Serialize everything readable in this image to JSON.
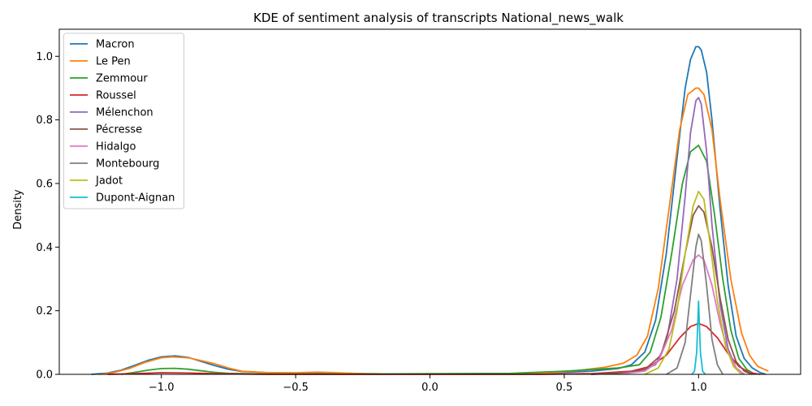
{
  "chart_data": {
    "type": "line",
    "title": "KDE of sentiment analysis of transcripts National_news_walk",
    "xlabel": "",
    "ylabel": "Density",
    "xlim": [
      -1.38,
      1.38
    ],
    "ylim": [
      0.0,
      1.085
    ],
    "xticks": [
      -1.0,
      -0.5,
      0.0,
      0.5,
      1.0
    ],
    "xtick_labels": [
      "−1.0",
      "−0.5",
      "0.0",
      "0.5",
      "1.0"
    ],
    "yticks": [
      0.0,
      0.2,
      0.4,
      0.6,
      0.8,
      1.0
    ],
    "ytick_labels": [
      "0.0",
      "0.2",
      "0.4",
      "0.6",
      "0.8",
      "1.0"
    ],
    "grid": false,
    "legend_position": "top-left",
    "series": [
      {
        "name": "Macron",
        "color": "#1f77b4",
        "points": [
          [
            -1.26,
            0.0
          ],
          [
            -1.2,
            0.004
          ],
          [
            -1.15,
            0.013
          ],
          [
            -1.1,
            0.028
          ],
          [
            -1.05,
            0.044
          ],
          [
            -1.0,
            0.055
          ],
          [
            -0.95,
            0.058
          ],
          [
            -0.9,
            0.053
          ],
          [
            -0.85,
            0.04
          ],
          [
            -0.8,
            0.027
          ],
          [
            -0.75,
            0.016
          ],
          [
            -0.7,
            0.009
          ],
          [
            -0.6,
            0.005
          ],
          [
            -0.5,
            0.004
          ],
          [
            -0.42,
            0.005
          ],
          [
            -0.35,
            0.004
          ],
          [
            -0.25,
            0.002
          ],
          [
            -0.1,
            0.001
          ],
          [
            0.0,
            0.001
          ],
          [
            0.2,
            0.001
          ],
          [
            0.4,
            0.003
          ],
          [
            0.5,
            0.006
          ],
          [
            0.6,
            0.01
          ],
          [
            0.7,
            0.018
          ],
          [
            0.75,
            0.03
          ],
          [
            0.8,
            0.07
          ],
          [
            0.84,
            0.17
          ],
          [
            0.88,
            0.38
          ],
          [
            0.92,
            0.68
          ],
          [
            0.95,
            0.9
          ],
          [
            0.97,
            0.99
          ],
          [
            0.99,
            1.03
          ],
          [
            1.0,
            1.03
          ],
          [
            1.01,
            1.02
          ],
          [
            1.03,
            0.95
          ],
          [
            1.05,
            0.8
          ],
          [
            1.08,
            0.52
          ],
          [
            1.11,
            0.28
          ],
          [
            1.14,
            0.12
          ],
          [
            1.17,
            0.05
          ],
          [
            1.2,
            0.02
          ],
          [
            1.23,
            0.005
          ],
          [
            1.25,
            0.0
          ]
        ]
      },
      {
        "name": "Le Pen",
        "color": "#ff7f0e",
        "points": [
          [
            -1.23,
            0.0
          ],
          [
            -1.18,
            0.005
          ],
          [
            -1.12,
            0.018
          ],
          [
            -1.06,
            0.038
          ],
          [
            -1.0,
            0.052
          ],
          [
            -0.96,
            0.055
          ],
          [
            -0.9,
            0.052
          ],
          [
            -0.85,
            0.043
          ],
          [
            -0.8,
            0.033
          ],
          [
            -0.75,
            0.02
          ],
          [
            -0.7,
            0.01
          ],
          [
            -0.6,
            0.005
          ],
          [
            -0.5,
            0.005
          ],
          [
            -0.42,
            0.007
          ],
          [
            -0.35,
            0.005
          ],
          [
            -0.25,
            0.002
          ],
          [
            -0.1,
            0.001
          ],
          [
            0.1,
            0.001
          ],
          [
            0.3,
            0.002
          ],
          [
            0.45,
            0.005
          ],
          [
            0.55,
            0.012
          ],
          [
            0.65,
            0.022
          ],
          [
            0.72,
            0.035
          ],
          [
            0.77,
            0.06
          ],
          [
            0.81,
            0.12
          ],
          [
            0.85,
            0.27
          ],
          [
            0.89,
            0.52
          ],
          [
            0.93,
            0.77
          ],
          [
            0.96,
            0.88
          ],
          [
            0.99,
            0.9
          ],
          [
            1.0,
            0.9
          ],
          [
            1.02,
            0.88
          ],
          [
            1.05,
            0.77
          ],
          [
            1.08,
            0.55
          ],
          [
            1.12,
            0.3
          ],
          [
            1.16,
            0.13
          ],
          [
            1.19,
            0.06
          ],
          [
            1.22,
            0.025
          ],
          [
            1.26,
            0.01
          ]
        ]
      },
      {
        "name": "Zemmour",
        "color": "#2ca02c",
        "points": [
          [
            -1.15,
            0.0
          ],
          [
            -1.1,
            0.006
          ],
          [
            -1.05,
            0.013
          ],
          [
            -1.0,
            0.018
          ],
          [
            -0.95,
            0.019
          ],
          [
            -0.9,
            0.016
          ],
          [
            -0.85,
            0.011
          ],
          [
            -0.8,
            0.006
          ],
          [
            -0.75,
            0.003
          ],
          [
            -0.6,
            0.001
          ],
          [
            -0.3,
            0.001
          ],
          [
            0.3,
            0.003
          ],
          [
            0.5,
            0.01
          ],
          [
            0.6,
            0.015
          ],
          [
            0.7,
            0.02
          ],
          [
            0.78,
            0.03
          ],
          [
            0.82,
            0.07
          ],
          [
            0.86,
            0.18
          ],
          [
            0.9,
            0.38
          ],
          [
            0.94,
            0.6
          ],
          [
            0.97,
            0.7
          ],
          [
            1.0,
            0.72
          ],
          [
            1.03,
            0.67
          ],
          [
            1.06,
            0.5
          ],
          [
            1.09,
            0.3
          ],
          [
            1.12,
            0.14
          ],
          [
            1.15,
            0.05
          ],
          [
            1.18,
            0.015
          ],
          [
            1.21,
            0.0
          ]
        ]
      },
      {
        "name": "Roussel",
        "color": "#d62728",
        "points": [
          [
            -1.2,
            0.0
          ],
          [
            -1.1,
            0.002
          ],
          [
            -1.0,
            0.005
          ],
          [
            -0.9,
            0.004
          ],
          [
            -0.8,
            0.002
          ],
          [
            -0.6,
            0.0
          ],
          [
            0.4,
            0.0
          ],
          [
            0.6,
            0.002
          ],
          [
            0.75,
            0.01
          ],
          [
            0.82,
            0.025
          ],
          [
            0.88,
            0.06
          ],
          [
            0.93,
            0.115
          ],
          [
            0.97,
            0.15
          ],
          [
            1.0,
            0.16
          ],
          [
            1.03,
            0.15
          ],
          [
            1.07,
            0.115
          ],
          [
            1.11,
            0.065
          ],
          [
            1.15,
            0.025
          ],
          [
            1.19,
            0.005
          ],
          [
            1.23,
            0.0
          ]
        ]
      },
      {
        "name": "Mélenchon",
        "color": "#9467bd",
        "points": [
          [
            0.6,
            0.0
          ],
          [
            0.7,
            0.003
          ],
          [
            0.78,
            0.01
          ],
          [
            0.84,
            0.03
          ],
          [
            0.88,
            0.1
          ],
          [
            0.92,
            0.3
          ],
          [
            0.95,
            0.56
          ],
          [
            0.97,
            0.76
          ],
          [
            0.99,
            0.86
          ],
          [
            1.0,
            0.87
          ],
          [
            1.01,
            0.85
          ],
          [
            1.03,
            0.7
          ],
          [
            1.05,
            0.47
          ],
          [
            1.08,
            0.22
          ],
          [
            1.11,
            0.08
          ],
          [
            1.14,
            0.02
          ],
          [
            1.17,
            0.0
          ]
        ]
      },
      {
        "name": "Pécresse",
        "color": "#8c564b",
        "points": [
          [
            0.6,
            0.0
          ],
          [
            0.72,
            0.005
          ],
          [
            0.8,
            0.015
          ],
          [
            0.86,
            0.06
          ],
          [
            0.91,
            0.2
          ],
          [
            0.95,
            0.38
          ],
          [
            0.98,
            0.5
          ],
          [
            1.0,
            0.53
          ],
          [
            1.02,
            0.51
          ],
          [
            1.05,
            0.4
          ],
          [
            1.08,
            0.24
          ],
          [
            1.11,
            0.11
          ],
          [
            1.14,
            0.04
          ],
          [
            1.17,
            0.01
          ],
          [
            1.2,
            0.0
          ]
        ]
      },
      {
        "name": "Hidalgo",
        "color": "#e377c2",
        "points": [
          [
            0.7,
            0.0
          ],
          [
            0.8,
            0.01
          ],
          [
            0.85,
            0.04
          ],
          [
            0.9,
            0.14
          ],
          [
            0.94,
            0.28
          ],
          [
            0.98,
            0.36
          ],
          [
            1.0,
            0.375
          ],
          [
            1.02,
            0.36
          ],
          [
            1.05,
            0.28
          ],
          [
            1.08,
            0.16
          ],
          [
            1.11,
            0.07
          ],
          [
            1.14,
            0.02
          ],
          [
            1.17,
            0.0
          ]
        ]
      },
      {
        "name": "Montebourg",
        "color": "#7f7f7f",
        "points": [
          [
            0.88,
            0.0
          ],
          [
            0.92,
            0.02
          ],
          [
            0.95,
            0.1
          ],
          [
            0.97,
            0.25
          ],
          [
            0.99,
            0.4
          ],
          [
            1.0,
            0.44
          ],
          [
            1.01,
            0.42
          ],
          [
            1.03,
            0.28
          ],
          [
            1.05,
            0.11
          ],
          [
            1.07,
            0.03
          ],
          [
            1.09,
            0.0
          ]
        ]
      },
      {
        "name": "Jadot",
        "color": "#bcbd22",
        "points": [
          [
            0.8,
            0.0
          ],
          [
            0.85,
            0.02
          ],
          [
            0.89,
            0.08
          ],
          [
            0.92,
            0.2
          ],
          [
            0.95,
            0.38
          ],
          [
            0.98,
            0.53
          ],
          [
            1.0,
            0.575
          ],
          [
            1.02,
            0.55
          ],
          [
            1.04,
            0.43
          ],
          [
            1.07,
            0.23
          ],
          [
            1.1,
            0.09
          ],
          [
            1.13,
            0.025
          ],
          [
            1.16,
            0.0
          ]
        ]
      },
      {
        "name": "Dupont-Aignan",
        "color": "#17becf",
        "points": [
          [
            0.975,
            0.0
          ],
          [
            0.985,
            0.01
          ],
          [
            0.993,
            0.07
          ],
          [
            0.998,
            0.18
          ],
          [
            1.0,
            0.23
          ],
          [
            1.002,
            0.18
          ],
          [
            1.007,
            0.07
          ],
          [
            1.015,
            0.01
          ],
          [
            1.025,
            0.0
          ]
        ]
      }
    ]
  }
}
